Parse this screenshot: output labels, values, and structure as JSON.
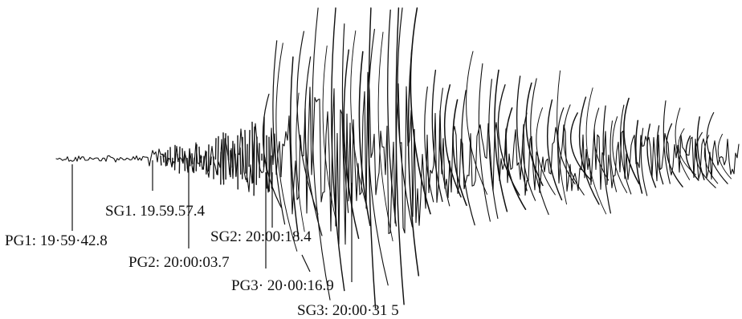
{
  "colors": {
    "ink": "#111111",
    "background": "#ffffff"
  },
  "picks": [
    {
      "id": "pg1",
      "label": "PG1: 19·59·42.8"
    },
    {
      "id": "sg1",
      "label": "SG1. 19.59.57.4"
    },
    {
      "id": "pg2",
      "label": "PG2: 20:00:03.7"
    },
    {
      "id": "sg2",
      "label": "SG2: 20:00:18.4"
    },
    {
      "id": "pg3",
      "label": "PG3· 20·00:16.9"
    },
    {
      "id": "sg3",
      "label": "SG3: 20:00·31 5"
    }
  ]
}
